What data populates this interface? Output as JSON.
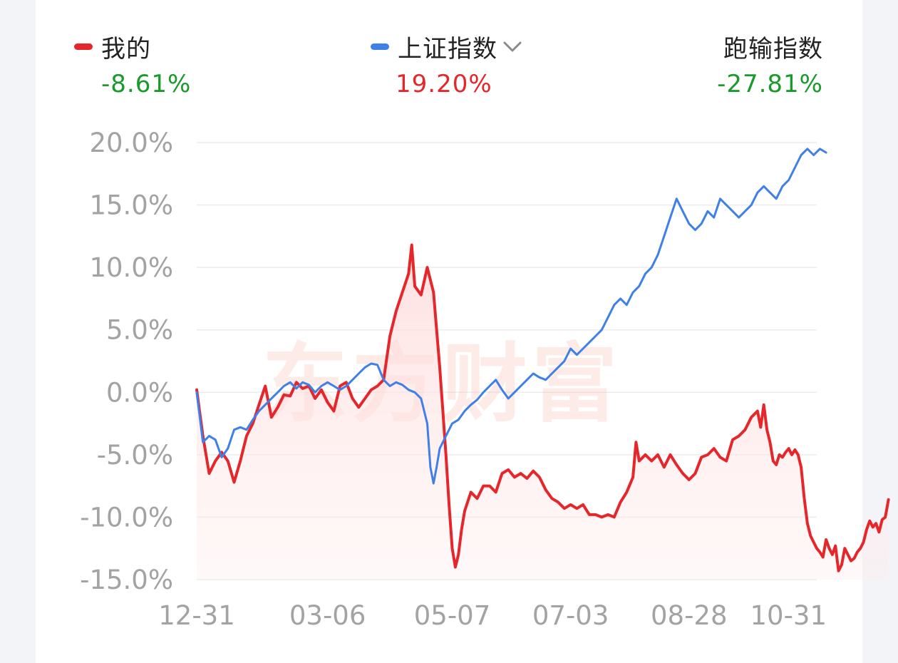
{
  "legend": {
    "mine": {
      "label": "我的",
      "value": "-8.61%",
      "color": "#e5262b",
      "value_color": "#1a9a2a"
    },
    "index": {
      "label": "上证指数",
      "value": "19.20%",
      "color": "#3f80e8",
      "value_color": "#e5262b",
      "dropdown_icon": "chevron-down-icon"
    },
    "benchmark": {
      "label": "跑输指数",
      "value": "-27.81%",
      "value_color": "#1a9a2a"
    }
  },
  "watermark": "东方财富",
  "chart_data": {
    "type": "line",
    "y_unit": "%",
    "ylim": [
      -15,
      20
    ],
    "y_ticks": [
      20,
      15,
      10,
      5,
      0,
      -5,
      -10,
      -15
    ],
    "y_tick_labels": [
      "20.0%",
      "15.0%",
      "10.0%",
      "5.0%",
      "0.0%",
      "-5.0%",
      "-10.0%",
      "-15.0%"
    ],
    "x_tick_labels": [
      "12-31",
      "03-06",
      "05-07",
      "07-03",
      "08-28",
      "10-31"
    ],
    "x_tick_positions": [
      0,
      42,
      82,
      120,
      158,
      199
    ],
    "x_count": 200,
    "grid": true,
    "series": [
      {
        "name": "我的",
        "color": "#e5262b",
        "area_fill": true,
        "points": [
          [
            0,
            0.2
          ],
          [
            2,
            -3.5
          ],
          [
            4,
            -6.5
          ],
          [
            6,
            -5.5
          ],
          [
            8,
            -4.8
          ],
          [
            10,
            -5.5
          ],
          [
            12,
            -7.2
          ],
          [
            14,
            -5.5
          ],
          [
            16,
            -3.5
          ],
          [
            18,
            -2.5
          ],
          [
            20,
            -1.0
          ],
          [
            22,
            0.5
          ],
          [
            24,
            -2.0
          ],
          [
            26,
            -1.2
          ],
          [
            28,
            -0.2
          ],
          [
            30,
            -0.3
          ],
          [
            32,
            0.8
          ],
          [
            34,
            0.3
          ],
          [
            36,
            0.5
          ],
          [
            38,
            -0.5
          ],
          [
            40,
            0.2
          ],
          [
            42,
            -0.8
          ],
          [
            44,
            -1.5
          ],
          [
            46,
            0.5
          ],
          [
            48,
            0.8
          ],
          [
            50,
            -0.5
          ],
          [
            52,
            -1.2
          ],
          [
            54,
            -0.5
          ],
          [
            56,
            0.2
          ],
          [
            58,
            0.5
          ],
          [
            60,
            1.0
          ],
          [
            62,
            4.5
          ],
          [
            64,
            6.5
          ],
          [
            66,
            8.0
          ],
          [
            68,
            9.5
          ],
          [
            69,
            11.8
          ],
          [
            70,
            8.5
          ],
          [
            72,
            7.8
          ],
          [
            74,
            10.0
          ],
          [
            76,
            8.0
          ],
          [
            78,
            2.0
          ],
          [
            79,
            -1.5
          ],
          [
            80,
            -5.0
          ],
          [
            81,
            -9.0
          ],
          [
            82,
            -12.5
          ],
          [
            83,
            -14.0
          ],
          [
            84,
            -13.0
          ],
          [
            85,
            -11.0
          ],
          [
            86,
            -9.5
          ],
          [
            88,
            -8.0
          ],
          [
            90,
            -8.5
          ],
          [
            92,
            -7.5
          ],
          [
            94,
            -7.5
          ],
          [
            96,
            -8.0
          ],
          [
            98,
            -6.5
          ],
          [
            100,
            -6.2
          ],
          [
            102,
            -6.8
          ],
          [
            104,
            -6.5
          ],
          [
            106,
            -6.9
          ],
          [
            108,
            -6.3
          ],
          [
            110,
            -6.8
          ],
          [
            112,
            -7.8
          ],
          [
            114,
            -8.5
          ],
          [
            116,
            -8.8
          ],
          [
            118,
            -9.3
          ],
          [
            120,
            -9.0
          ],
          [
            122,
            -9.3
          ],
          [
            124,
            -9.0
          ],
          [
            126,
            -9.8
          ],
          [
            128,
            -9.8
          ],
          [
            130,
            -10.0
          ],
          [
            132,
            -9.8
          ],
          [
            134,
            -10.0
          ],
          [
            136,
            -8.8
          ],
          [
            138,
            -8.0
          ],
          [
            140,
            -6.8
          ],
          [
            141,
            -4.0
          ],
          [
            142,
            -5.5
          ],
          [
            144,
            -5.0
          ],
          [
            146,
            -5.5
          ],
          [
            148,
            -5.0
          ],
          [
            150,
            -6.0
          ],
          [
            152,
            -5.0
          ],
          [
            154,
            -5.8
          ],
          [
            156,
            -6.5
          ],
          [
            158,
            -7.0
          ],
          [
            160,
            -6.5
          ],
          [
            162,
            -5.2
          ],
          [
            164,
            -5.0
          ],
          [
            166,
            -4.5
          ],
          [
            168,
            -5.2
          ],
          [
            170,
            -5.5
          ],
          [
            172,
            -3.8
          ],
          [
            174,
            -3.5
          ],
          [
            176,
            -3.0
          ],
          [
            178,
            -2.0
          ],
          [
            180,
            -1.5
          ],
          [
            181,
            -2.8
          ],
          [
            182,
            -1.0
          ],
          [
            183,
            -3.0
          ],
          [
            184,
            -4.0
          ],
          [
            185,
            -5.5
          ],
          [
            186,
            -5.8
          ],
          [
            187,
            -5.0
          ],
          [
            188,
            -5.2
          ],
          [
            189,
            -4.8
          ],
          [
            190,
            -4.5
          ],
          [
            191,
            -5.0
          ],
          [
            192,
            -4.6
          ],
          [
            193,
            -5.0
          ],
          [
            194,
            -6.0
          ],
          [
            195,
            -8.5
          ],
          [
            196,
            -10.5
          ],
          [
            197,
            -11.5
          ],
          [
            198,
            -12.0
          ],
          [
            199,
            -12.5
          ],
          [
            200,
            -12.8
          ],
          [
            201,
            -13.2
          ],
          [
            202,
            -11.8
          ],
          [
            203,
            -12.5
          ],
          [
            204,
            -13.0
          ],
          [
            205,
            -12.3
          ],
          [
            206,
            -14.3
          ],
          [
            207,
            -13.8
          ],
          [
            208,
            -12.5
          ],
          [
            209,
            -13.0
          ],
          [
            210,
            -13.5
          ],
          [
            211,
            -13.3
          ],
          [
            212,
            -12.8
          ],
          [
            213,
            -12.5
          ],
          [
            214,
            -12.0
          ],
          [
            215,
            -11.0
          ],
          [
            216,
            -10.3
          ],
          [
            217,
            -10.8
          ],
          [
            218,
            -10.5
          ],
          [
            219,
            -11.2
          ],
          [
            220,
            -10.2
          ],
          [
            221,
            -10.0
          ],
          [
            222,
            -8.6
          ]
        ]
      },
      {
        "name": "上证指数",
        "color": "#3f80e8",
        "area_fill": false,
        "points": [
          [
            0,
            0.0
          ],
          [
            2,
            -4.0
          ],
          [
            4,
            -3.5
          ],
          [
            6,
            -3.8
          ],
          [
            8,
            -5.2
          ],
          [
            10,
            -4.5
          ],
          [
            12,
            -3.0
          ],
          [
            14,
            -2.8
          ],
          [
            16,
            -3.0
          ],
          [
            18,
            -2.2
          ],
          [
            20,
            -1.5
          ],
          [
            22,
            -1.0
          ],
          [
            24,
            -0.5
          ],
          [
            26,
            0.0
          ],
          [
            28,
            0.5
          ],
          [
            30,
            0.8
          ],
          [
            32,
            0.3
          ],
          [
            34,
            0.8
          ],
          [
            36,
            0.6
          ],
          [
            38,
            0.0
          ],
          [
            40,
            0.5
          ],
          [
            42,
            0.8
          ],
          [
            44,
            0.5
          ],
          [
            46,
            0.2
          ],
          [
            48,
            0.5
          ],
          [
            50,
            1.0
          ],
          [
            52,
            1.5
          ],
          [
            54,
            2.0
          ],
          [
            56,
            2.3
          ],
          [
            58,
            2.2
          ],
          [
            60,
            1.0
          ],
          [
            62,
            0.5
          ],
          [
            64,
            0.8
          ],
          [
            66,
            0.6
          ],
          [
            68,
            0.2
          ],
          [
            70,
            0.0
          ],
          [
            72,
            -0.5
          ],
          [
            74,
            -2.5
          ],
          [
            75,
            -6.0
          ],
          [
            76,
            -7.3
          ],
          [
            77,
            -6.0
          ],
          [
            78,
            -4.5
          ],
          [
            80,
            -3.5
          ],
          [
            82,
            -2.5
          ],
          [
            84,
            -2.2
          ],
          [
            86,
            -1.5
          ],
          [
            88,
            -1.0
          ],
          [
            90,
            -0.6
          ],
          [
            92,
            0.0
          ],
          [
            94,
            0.5
          ],
          [
            96,
            1.0
          ],
          [
            98,
            0.2
          ],
          [
            100,
            -0.5
          ],
          [
            102,
            0.0
          ],
          [
            104,
            0.5
          ],
          [
            106,
            1.0
          ],
          [
            108,
            1.5
          ],
          [
            110,
            1.2
          ],
          [
            112,
            1.0
          ],
          [
            114,
            1.5
          ],
          [
            116,
            2.0
          ],
          [
            118,
            2.5
          ],
          [
            120,
            3.5
          ],
          [
            122,
            3.0
          ],
          [
            124,
            3.5
          ],
          [
            126,
            4.0
          ],
          [
            128,
            4.5
          ],
          [
            130,
            5.0
          ],
          [
            132,
            6.0
          ],
          [
            134,
            7.0
          ],
          [
            136,
            7.5
          ],
          [
            138,
            7.0
          ],
          [
            140,
            8.0
          ],
          [
            142,
            8.5
          ],
          [
            144,
            9.5
          ],
          [
            146,
            10.0
          ],
          [
            148,
            11.0
          ],
          [
            150,
            12.5
          ],
          [
            152,
            14.0
          ],
          [
            154,
            15.5
          ],
          [
            156,
            14.5
          ],
          [
            158,
            13.5
          ],
          [
            160,
            13.0
          ],
          [
            162,
            13.5
          ],
          [
            164,
            14.5
          ],
          [
            166,
            14.0
          ],
          [
            168,
            15.5
          ],
          [
            170,
            15.0
          ],
          [
            172,
            14.5
          ],
          [
            174,
            14.0
          ],
          [
            176,
            14.5
          ],
          [
            178,
            15.0
          ],
          [
            180,
            16.0
          ],
          [
            182,
            16.5
          ],
          [
            184,
            16.0
          ],
          [
            186,
            15.5
          ],
          [
            188,
            16.5
          ],
          [
            190,
            17.0
          ],
          [
            192,
            18.0
          ],
          [
            194,
            19.0
          ],
          [
            196,
            19.5
          ],
          [
            198,
            19.0
          ],
          [
            200,
            19.5
          ],
          [
            202,
            19.2
          ]
        ]
      }
    ]
  }
}
